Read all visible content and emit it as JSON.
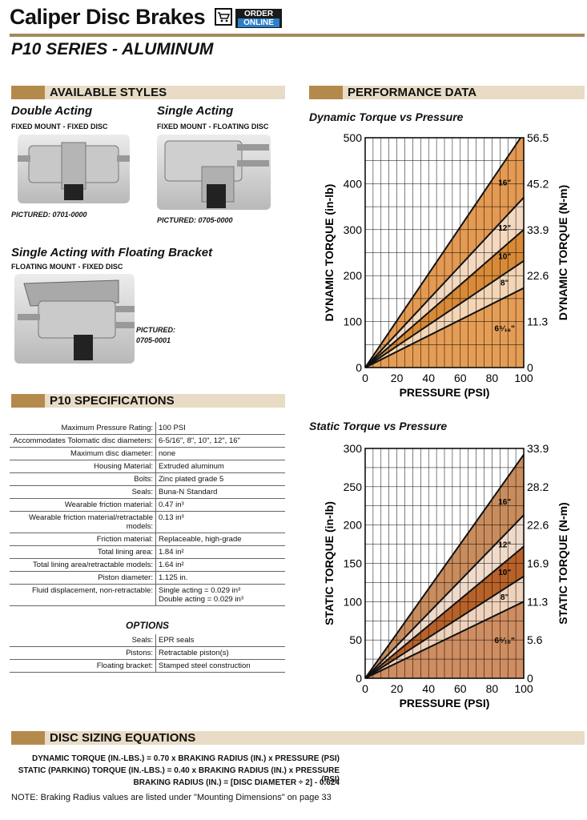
{
  "header": {
    "title": "Caliper Disc Brakes",
    "order_line1": "ORDER",
    "order_line2": "ONLINE",
    "subtitle": "P10 SERIES - ALUMINUM"
  },
  "styles": {
    "heading": "AVAILABLE STYLES",
    "double": {
      "name": "Double Acting",
      "mount": "FIXED MOUNT - FIXED DISC",
      "pictured": "PICTURED:  0701-0000"
    },
    "single": {
      "name": "Single Acting",
      "mount": "FIXED MOUNT - FLOATING DISC",
      "pictured": "PICTURED: 0705-0000"
    },
    "floating": {
      "name": "Single Acting with Floating Bracket",
      "mount": "FLOATING MOUNT - FIXED DISC",
      "pictured_1": "PICTURED:",
      "pictured_2": "0705-0001"
    }
  },
  "specs": {
    "heading": "P10 SPECIFICATIONS",
    "rows": [
      {
        "label": "Maximum Pressure Rating:",
        "value": "100 PSI"
      },
      {
        "label": "Accommodates Tolomatic disc diameters:",
        "value": "6-5/16\",  8\",  10\", 12\", 16\""
      },
      {
        "label": "Maximum disc diameter:",
        "value": "none"
      },
      {
        "label": "Housing Material:",
        "value": "Extruded aluminum"
      },
      {
        "label": "Bolts:",
        "value": "Zinc plated grade 5"
      },
      {
        "label": "Seals:",
        "value": "Buna-N Standard"
      },
      {
        "label": "Wearable friction material:",
        "value": "0.47 in³"
      },
      {
        "label": "Wearable friction material/retractable models:",
        "value": "0.13 in³"
      },
      {
        "label": "Friction material:",
        "value": "Replaceable, high-grade"
      },
      {
        "label": "Total lining area:",
        "value": "1.84 in²"
      },
      {
        "label": "Total lining area/retractable models:",
        "value": "1.64 in²"
      },
      {
        "label": "Piston diameter:",
        "value": "1.125 in."
      },
      {
        "label": "Fluid displacement, non-retractable:",
        "value": "Single acting = 0.029 in³",
        "value2": "Double acting = 0.029 in³"
      }
    ],
    "options_heading": "OPTIONS",
    "options": [
      {
        "label": "Seals:",
        "value": "EPR seals"
      },
      {
        "label": "Pistons:",
        "value": "Retractable piston(s)"
      },
      {
        "label": "Floating bracket:",
        "value": "Stamped steel construction"
      }
    ]
  },
  "performance": {
    "heading": "PERFORMANCE DATA"
  },
  "chart_data": [
    {
      "type": "area",
      "title": "Dynamic Torque vs Pressure",
      "xlabel": "PRESSURE (PSI)",
      "ylabel": "DYNAMIC TORQUE (in-lb)",
      "y2label": "DYNAMIC TORQUE (N-m)",
      "xlim": [
        0,
        100
      ],
      "ylim": [
        0,
        500
      ],
      "x_ticks": [
        "0",
        "20",
        "40",
        "60",
        "80",
        "100"
      ],
      "y_ticks": [
        "0",
        "100",
        "200",
        "300",
        "400",
        "500"
      ],
      "y2_ticks": [
        "0",
        "11.3",
        "22.6",
        "33.9",
        "45.2",
        "56.5"
      ],
      "x": [
        0,
        100
      ],
      "series": [
        {
          "name": "16\"",
          "values": [
            0,
            510
          ],
          "color": "#e49a52"
        },
        {
          "name": "12\"",
          "values": [
            0,
            370
          ],
          "color": "#f4d9bf"
        },
        {
          "name": "10\"",
          "values": [
            0,
            300
          ],
          "color": "#d98a37"
        },
        {
          "name": "8\"",
          "values": [
            0,
            232
          ],
          "color": "#f4d6b6"
        },
        {
          "name": "6⁵⁄₁₆\"",
          "values": [
            0,
            173
          ],
          "color": "#e59d55"
        }
      ]
    },
    {
      "type": "area",
      "title": "Static Torque vs Pressure",
      "xlabel": "PRESSURE (PSI)",
      "ylabel": "STATIC TORQUE (in-lb)",
      "y2label": "STATIC TORQUE (N-m)",
      "xlim": [
        0,
        100
      ],
      "ylim": [
        0,
        300
      ],
      "x_ticks": [
        "0",
        "20",
        "40",
        "60",
        "80",
        "100"
      ],
      "y_ticks": [
        "0",
        "50",
        "100",
        "150",
        "200",
        "250",
        "300"
      ],
      "y2_ticks": [
        "0",
        "5.6",
        "11.3",
        "16.9",
        "22.6",
        "28.2",
        "33.9"
      ],
      "x": [
        0,
        100
      ],
      "series": [
        {
          "name": "16\"",
          "values": [
            0,
            292
          ],
          "color": "#c98c5d"
        },
        {
          "name": "12\"",
          "values": [
            0,
            213
          ],
          "color": "#f0dbcb"
        },
        {
          "name": "10\"",
          "values": [
            0,
            172
          ],
          "color": "#b8622a"
        },
        {
          "name": "8\"",
          "values": [
            0,
            133
          ],
          "color": "#eed2bb"
        },
        {
          "name": "6⁵⁄₁₆\"",
          "values": [
            0,
            100
          ],
          "color": "#cf8d62"
        }
      ]
    }
  ],
  "equations": {
    "heading": "DISC SIZING EQUATIONS",
    "eq1": "DYNAMIC TORQUE (IN.-LBS.) = 0.70 x BRAKING RADIUS (IN.) x PRESSURE (PSI)",
    "eq2": "STATIC (PARKING) TORQUE (IN.-LBS.) = 0.40 x BRAKING RADIUS (IN.) x PRESSURE (PSI)",
    "eq3": "BRAKING RADIUS (IN.) = [DISC DIAMETER ÷ 2] - 0.624",
    "note": "NOTE: Braking Radius values are listed under \"Mounting Dimensions\" on page 33"
  }
}
